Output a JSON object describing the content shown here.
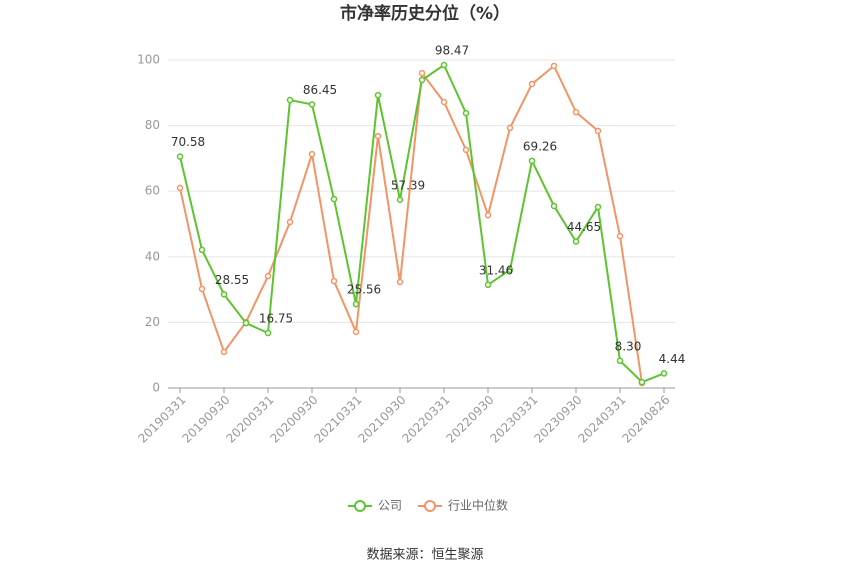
{
  "chart_data": {
    "type": "line",
    "title": "市净率历史分位（%）",
    "categories": [
      "20190331",
      null,
      "20190930",
      null,
      "20200331",
      null,
      "20200930",
      null,
      "20210331",
      null,
      "20210930",
      null,
      "20220331",
      null,
      "20220930",
      null,
      "20230331",
      null,
      "20230930",
      null,
      "20240331",
      null,
      "20240826"
    ],
    "series": [
      {
        "name": "公司",
        "color": "#5cc52e",
        "values": [
          70.58,
          42.1,
          28.55,
          19.8,
          16.75,
          87.8,
          86.45,
          57.6,
          25.56,
          89.3,
          57.39,
          93.9,
          98.47,
          83.8,
          31.46,
          36.0,
          69.26,
          55.5,
          44.65,
          55.2,
          8.3,
          1.8,
          4.44
        ],
        "value_labels": [
          "70.58",
          null,
          "28.55",
          null,
          "16.75",
          null,
          "86.45",
          null,
          "25.56",
          null,
          "57.39",
          null,
          "98.47",
          null,
          "31.46",
          null,
          "69.26",
          null,
          "44.65",
          null,
          "8.30",
          null,
          "4.44"
        ]
      },
      {
        "name": "行业中位数",
        "color": "#f39466",
        "values": [
          61.0,
          30.2,
          11.0,
          20.1,
          34.1,
          50.6,
          71.3,
          32.6,
          17.1,
          76.8,
          32.3,
          96.0,
          87.2,
          72.6,
          52.7,
          79.3,
          92.7,
          98.2,
          84.1,
          78.4,
          46.3,
          1.5,
          null
        ]
      }
    ],
    "ylim": [
      0,
      100
    ],
    "yticks": [
      0,
      20,
      40,
      60,
      80,
      100
    ],
    "grid": true,
    "legend": "bottom",
    "source": "数据来源：恒生聚源"
  }
}
